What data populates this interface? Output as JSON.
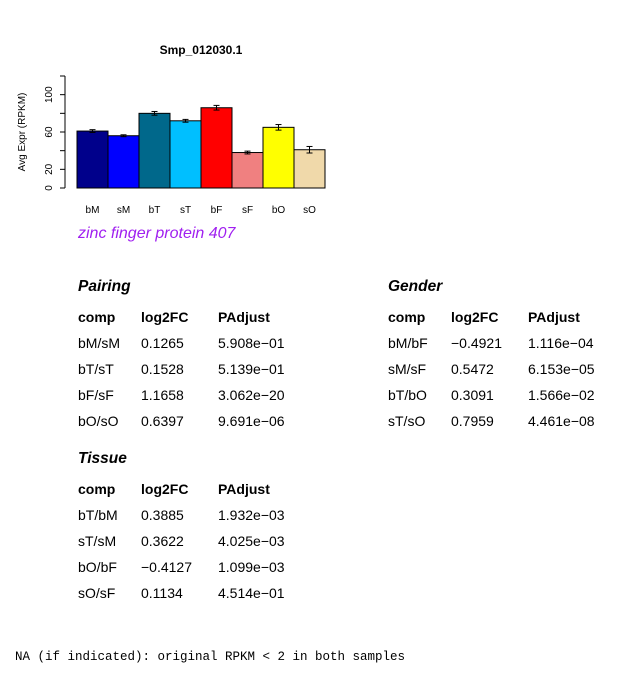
{
  "chart_data": {
    "type": "bar",
    "title": "Smp_012030.1",
    "ylabel": "Avg Expr (RPKM)",
    "xlabel": "",
    "ylim": [
      0,
      120
    ],
    "yticks": [
      0,
      20,
      60,
      100
    ],
    "categories": [
      "bM",
      "sM",
      "bT",
      "sT",
      "bF",
      "sF",
      "bO",
      "sO"
    ],
    "values": [
      61,
      56,
      80,
      72,
      86,
      38,
      65,
      41
    ],
    "errors": [
      1.5,
      1,
      2,
      1.5,
      2.5,
      1.5,
      3,
      3.5
    ],
    "colors": [
      "#00008b",
      "#0000ff",
      "#00688b",
      "#00bfff",
      "#ff0000",
      "#f08080",
      "#ffff00",
      "#f0d9aa"
    ],
    "grid": false
  },
  "subtitle": "zinc finger protein 407",
  "tables": {
    "pairing": {
      "title": "Pairing",
      "headers": [
        "comp",
        "log2FC",
        "PAdjust"
      ],
      "rows": [
        [
          "bM/sM",
          "0.1265",
          "5.908e−01"
        ],
        [
          "bT/sT",
          "0.1528",
          "5.139e−01"
        ],
        [
          "bF/sF",
          "1.1658",
          "3.062e−20"
        ],
        [
          "bO/sO",
          "0.6397",
          "9.691e−06"
        ]
      ]
    },
    "gender": {
      "title": "Gender",
      "headers": [
        "comp",
        "log2FC",
        "PAdjust"
      ],
      "rows": [
        [
          "bM/bF",
          "−0.4921",
          "1.116e−04"
        ],
        [
          "sM/sF",
          "0.5472",
          "6.153e−05"
        ],
        [
          "bT/bO",
          "0.3091",
          "1.566e−02"
        ],
        [
          "sT/sO",
          "0.7959",
          "4.461e−08"
        ]
      ]
    },
    "tissue": {
      "title": "Tissue",
      "headers": [
        "comp",
        "log2FC",
        "PAdjust"
      ],
      "rows": [
        [
          "bT/bM",
          "0.3885",
          "1.932e−03"
        ],
        [
          "sT/sM",
          "0.3622",
          "4.025e−03"
        ],
        [
          "bO/bF",
          "−0.4127",
          "1.099e−03"
        ],
        [
          "sO/sF",
          "0.1134",
          "4.514e−01"
        ]
      ]
    }
  },
  "footer": "NA (if indicated): original RPKM < 2 in both samples"
}
